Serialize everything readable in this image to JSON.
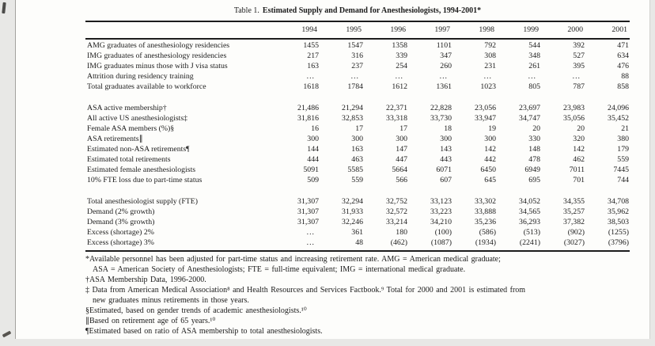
{
  "title": {
    "prefix": "Table 1.",
    "main": "Estimated Supply and Demand for Anesthesiologists, 1994-2001*"
  },
  "table": {
    "years": [
      "1994",
      "1995",
      "1996",
      "1997",
      "1998",
      "1999",
      "2000",
      "2001"
    ],
    "blocks": [
      {
        "rows": [
          {
            "label": "AMG graduates of anesthesiology residencies",
            "values": [
              "1455",
              "1547",
              "1358",
              "1101",
              "792",
              "544",
              "392",
              "471"
            ]
          },
          {
            "label": "IMG graduates of anesthesiology residencies",
            "values": [
              "217",
              "316",
              "339",
              "347",
              "308",
              "348",
              "527",
              "634"
            ]
          },
          {
            "label": "IMG graduates minus those with J visa status",
            "values": [
              "163",
              "237",
              "254",
              "260",
              "231",
              "261",
              "395",
              "476"
            ]
          },
          {
            "label": "Attrition during residency training",
            "values": [
              "...",
              "...",
              "...",
              "...",
              "...",
              "...",
              "...",
              "88"
            ]
          },
          {
            "label": "Total graduates available to workforce",
            "values": [
              "1618",
              "1784",
              "1612",
              "1361",
              "1023",
              "805",
              "787",
              "858"
            ]
          }
        ]
      },
      {
        "rows": [
          {
            "label": "ASA active membership†",
            "values": [
              "21,486",
              "21,294",
              "22,371",
              "22,828",
              "23,056",
              "23,697",
              "23,983",
              "24,096"
            ]
          },
          {
            "label": "All active US anesthesiologists‡",
            "values": [
              "31,816",
              "32,853",
              "33,318",
              "33,730",
              "33,947",
              "34,747",
              "35,056",
              "35,452"
            ]
          },
          {
            "label": "Female ASA members (%)§",
            "values": [
              "16",
              "17",
              "17",
              "18",
              "19",
              "20",
              "20",
              "21"
            ]
          },
          {
            "label": "ASA retirements∥",
            "values": [
              "300",
              "300",
              "300",
              "300",
              "300",
              "330",
              "320",
              "380"
            ]
          },
          {
            "label": "Estimated non-ASA retirements¶",
            "values": [
              "144",
              "163",
              "147",
              "143",
              "142",
              "148",
              "142",
              "179"
            ]
          },
          {
            "label": "Estimated total retirements",
            "values": [
              "444",
              "463",
              "447",
              "443",
              "442",
              "478",
              "462",
              "559"
            ]
          },
          {
            "label": "Estimated female anesthesiologists",
            "values": [
              "5091",
              "5585",
              "5664",
              "6071",
              "6450",
              "6949",
              "7011",
              "7445"
            ]
          },
          {
            "label": "10% FTE loss due to part-time status",
            "values": [
              "509",
              "559",
              "566",
              "607",
              "645",
              "695",
              "701",
              "744"
            ]
          }
        ]
      },
      {
        "rows": [
          {
            "label": "Total anesthesiologist supply (FTE)",
            "values": [
              "31,307",
              "32,294",
              "32,752",
              "33,123",
              "33,302",
              "34,052",
              "34,355",
              "34,708"
            ]
          },
          {
            "label": "Demand (2% growth)",
            "values": [
              "31,307",
              "31,933",
              "32,572",
              "33,223",
              "33,888",
              "34,565",
              "35,257",
              "35,962"
            ]
          },
          {
            "label": "Demand (3% growth)",
            "values": [
              "31,307",
              "32,246",
              "33,214",
              "34,210",
              "35,236",
              "36,293",
              "37,382",
              "38,503"
            ]
          },
          {
            "label": "Excess (shortage) 2%",
            "values": [
              "...",
              "361",
              "180",
              "(100)",
              "(586)",
              "(513)",
              "(902)",
              "(1255)"
            ]
          },
          {
            "label": "Excess (shortage) 3%",
            "values": [
              "...",
              "48",
              "(462)",
              "(1087)",
              "(1934)",
              "(2241)",
              "(3027)",
              "(3796)"
            ]
          }
        ]
      }
    ]
  },
  "footnotes": [
    {
      "lines": [
        "*Available personnel has been adjusted for part-time status and increasing retirement rate. AMG = American medical graduate;",
        "ASA = American Society of Anesthesiologists; FTE = full-time equivalent; IMG = international medical graduate."
      ]
    },
    {
      "lines": [
        "†ASA Membership Data, 1996-2000."
      ]
    },
    {
      "lines": [
        "‡ Data from American Medical Association⁸ and Health Resources and Services Factbook.⁹ Total for 2000 and 2001 is estimated from",
        "new graduates minus retirements in those years."
      ]
    },
    {
      "lines": [
        "§Estimated, based on gender trends of academic anesthesiologists.¹⁰"
      ]
    },
    {
      "lines": [
        "∥Based on retirement age of 65 years.¹⁰"
      ]
    },
    {
      "lines": [
        "¶Estimated based on ratio of ASA membership to total anesthesiologists."
      ]
    }
  ]
}
